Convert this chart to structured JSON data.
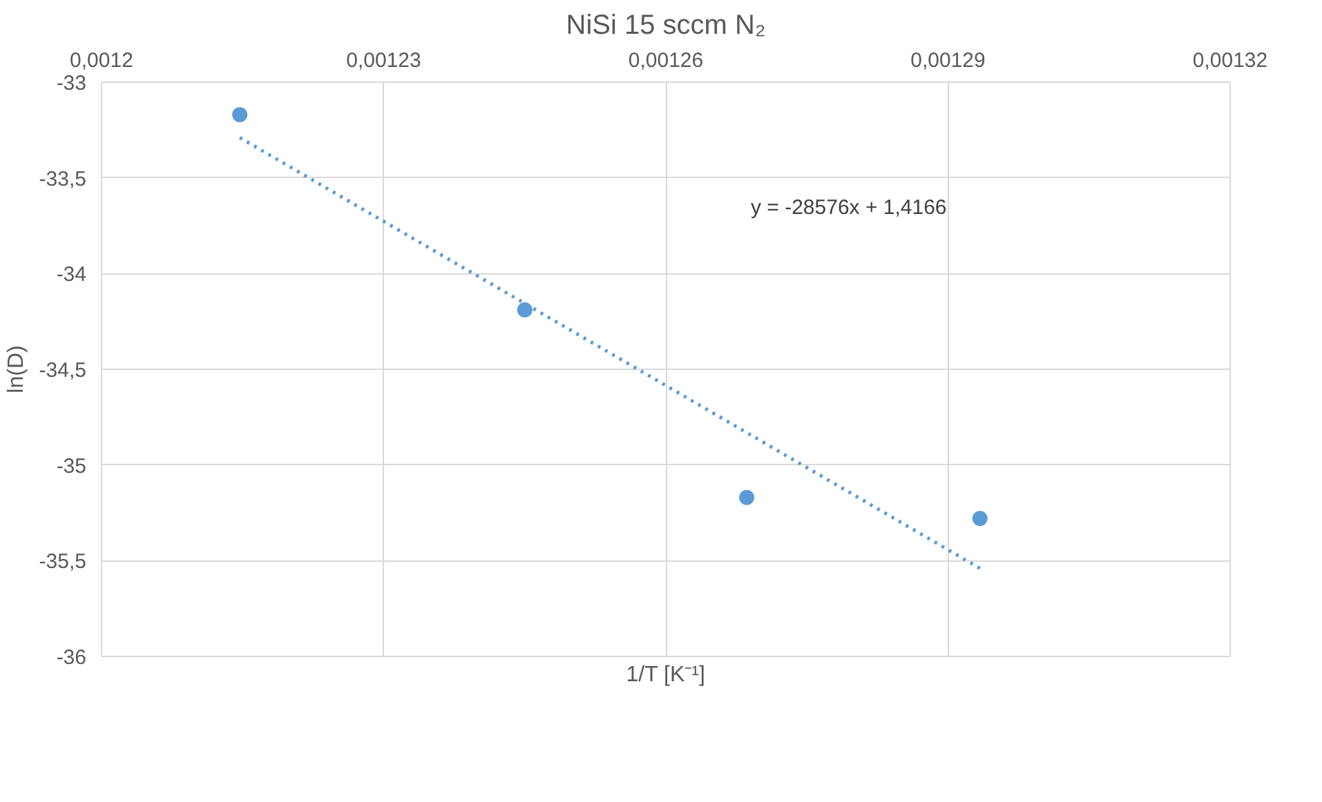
{
  "chart_data": {
    "type": "scatter",
    "title": "NiSi 15 sccm N₂",
    "xlabel": "1/T [K⁻¹]",
    "ylabel": "ln(D)",
    "series": [
      {
        "color": "#5b9bd5",
        "marker": "circle",
        "x": [
          0.0012147,
          0.001245,
          0.0012686,
          0.0012934
        ],
        "values": [
          -33.17,
          -34.19,
          -35.17,
          -35.28
        ]
      },
      {
        "type": "line",
        "color": "#5b9bd5",
        "line_style": "dotted",
        "marker": "none",
        "x": [
          0.0012147,
          0.0012934
        ],
        "values": [
          -33.29,
          -35.54
        ]
      }
    ],
    "annotations": [
      "y = -28576x + 1,4166"
    ],
    "xlim": [
      0.0012,
      0.00132
    ],
    "xticks": [
      {
        "value": 0.0012,
        "label": "0,0012"
      },
      {
        "value": 0.00123,
        "label": "0,00123"
      },
      {
        "value": 0.00126,
        "label": "0,00126"
      },
      {
        "value": 0.00129,
        "label": "0,00129"
      },
      {
        "value": 0.00132,
        "label": "0,00132"
      }
    ],
    "ylim": [
      -36,
      -33
    ],
    "yticks": [
      -36,
      {
        "value": -35.5,
        "label": "-35,5"
      },
      -35,
      {
        "value": -34.5,
        "label": "-34,5"
      },
      -34,
      {
        "value": -33.5,
        "label": "-33,5"
      },
      -33
    ],
    "grid": true
  }
}
